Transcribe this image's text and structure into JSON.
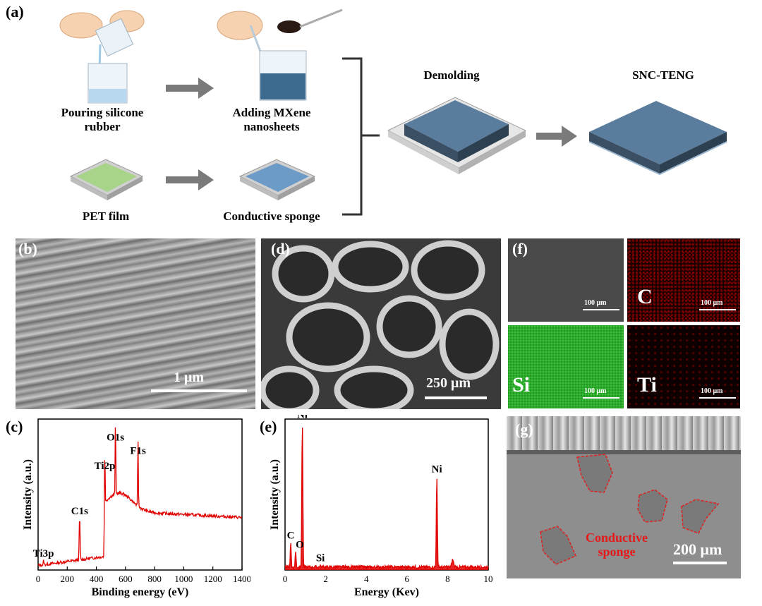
{
  "panel_a": {
    "label": "(a)",
    "steps": {
      "pouring": "Pouring silicone\nrubber",
      "adding": "Adding MXene\nnanosheets",
      "pet": "PET film",
      "sponge": "Conductive sponge",
      "demolding": "Demolding",
      "teng": "SNC-TENG"
    }
  },
  "panel_b": {
    "label": "(b)",
    "scale": "1 μm"
  },
  "panel_d": {
    "label": "(d)",
    "scale": "250 μm"
  },
  "panel_f": {
    "label": "(f)",
    "tiles": [
      {
        "element": "",
        "scale": "100 μm"
      },
      {
        "element": "C",
        "scale": "100 μm"
      },
      {
        "element": "Si",
        "scale": "100 μm"
      },
      {
        "element": "Ti",
        "scale": "100 μm"
      }
    ]
  },
  "panel_g": {
    "label": "(g)",
    "annotation": "Conductive\nsponge",
    "scale": "200 μm"
  },
  "chart_data": [
    {
      "panel": "(c)",
      "type": "line",
      "xlabel": "Binding energy (eV)",
      "ylabel": "Intensity (a.u.)",
      "xlim": [
        0,
        1400
      ],
      "xticks": [
        0,
        200,
        400,
        600,
        800,
        1000,
        1200,
        1400
      ],
      "color": "#e00000",
      "peaks": [
        {
          "label": "Ti3p",
          "x": 37,
          "rel": 0.06
        },
        {
          "label": "C1s",
          "x": 285,
          "rel": 0.34
        },
        {
          "label": "Ti2p",
          "x": 458,
          "rel": 0.64
        },
        {
          "label": "O1s",
          "x": 531,
          "rel": 0.83
        },
        {
          "label": "F1s",
          "x": 686,
          "rel": 0.74
        }
      ]
    },
    {
      "panel": "(e)",
      "type": "line",
      "xlabel": "Energy (Kev)",
      "ylabel": "Intensity (a.u.)",
      "xlim": [
        0,
        10
      ],
      "xticks": [
        0,
        2,
        4,
        6,
        8,
        10
      ],
      "color": "#e00000",
      "peaks": [
        {
          "label": "C",
          "x": 0.28,
          "rel": 0.18
        },
        {
          "label": "O",
          "x": 0.52,
          "rel": 0.12
        },
        {
          "label": "Ni",
          "x": 0.85,
          "rel": 0.98
        },
        {
          "label": "Si",
          "x": 1.74,
          "rel": 0.03
        },
        {
          "label": "Ni",
          "x": 7.47,
          "rel": 0.62
        }
      ]
    }
  ]
}
